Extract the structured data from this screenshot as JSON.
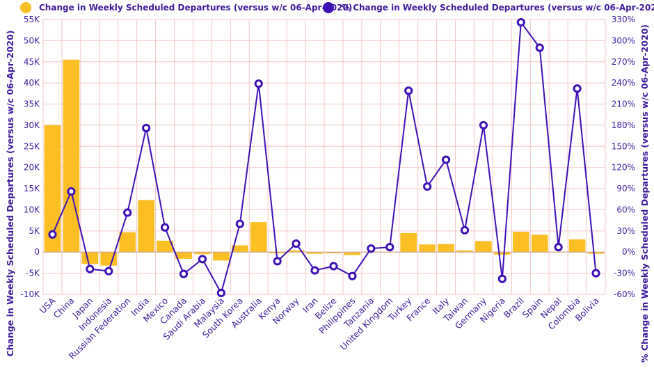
{
  "chart_data": {
    "type": "bar",
    "categories": [
      "USA",
      "China",
      "Japan",
      "Indonesia",
      "Russian Federation",
      "India",
      "Mexico",
      "Canada",
      "Saudi Arabia",
      "Malaysia",
      "South Korea",
      "Australia",
      "Kenya",
      "Norway",
      "Iran",
      "Belize",
      "Philippines",
      "Tanzania",
      "United Kingdom",
      "Turkey",
      "France",
      "Italy",
      "Taiwan",
      "Germany",
      "Nigeria",
      "Brazil",
      "Spain",
      "Nepal",
      "Colombia",
      "Bolivia"
    ],
    "series": [
      {
        "name": "Change in Weekly Scheduled Departures (versus w/c 06-Apr-2020)",
        "type": "bar",
        "axis": "left",
        "color": "#fbbf24",
        "values": [
          30000,
          45500,
          -2800,
          -3200,
          4700,
          12300,
          2700,
          -1600,
          -500,
          -2000,
          1600,
          7100,
          -300,
          400,
          -400,
          -300,
          -700,
          100,
          100,
          4500,
          1800,
          1900,
          400,
          2600,
          -600,
          4800,
          4100,
          100,
          3000,
          -400
        ]
      },
      {
        "name": "% Change in Weekly Scheduled Departures (versus w/c 06-Apr-2020)",
        "type": "line",
        "axis": "right",
        "color": "#3d0fb5",
        "values": [
          25,
          86,
          -24,
          -27,
          56,
          176,
          35,
          -31,
          -10,
          -58,
          40,
          239,
          -13,
          12,
          -26,
          -20,
          -34,
          5,
          7,
          229,
          93,
          131,
          31,
          180,
          -38,
          326,
          290,
          7,
          232,
          -30
        ]
      }
    ],
    "y_left": {
      "label": "Change in Weekly Scheduled Departures (versus w/c 06-Apr-2020)",
      "ylim": [
        -10000,
        55000
      ],
      "ticks": [
        -10000,
        -5000,
        0,
        5000,
        10000,
        15000,
        20000,
        25000,
        30000,
        35000,
        40000,
        45000,
        50000,
        55000
      ],
      "tick_labels": [
        "-10K",
        "-5K",
        "0",
        "5K",
        "10K",
        "15K",
        "20K",
        "25K",
        "30K",
        "35K",
        "40K",
        "45K",
        "50K",
        "55K"
      ]
    },
    "y_right": {
      "label": "% Change in Weekly Scheduled Departures (versus w/c 06-Apr-2020)",
      "ylim": [
        -60,
        330
      ],
      "ticks": [
        -60,
        -30,
        0,
        30,
        60,
        90,
        120,
        150,
        180,
        210,
        240,
        270,
        300,
        330
      ],
      "tick_labels": [
        "-60%",
        "-30%",
        "0%",
        "30%",
        "60%",
        "90%",
        "120%",
        "150%",
        "180%",
        "210%",
        "240%",
        "270%",
        "300%",
        "330%"
      ]
    },
    "grid": true,
    "legend": "top"
  }
}
